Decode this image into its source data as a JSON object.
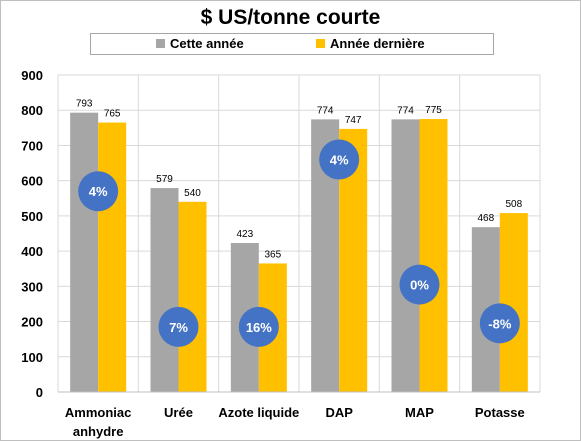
{
  "chart_data": {
    "type": "bar",
    "title": "$ US/tonne courte",
    "categories": [
      [
        "Ammoniac",
        "anhydre"
      ],
      [
        "Urée"
      ],
      [
        "Azote liquide"
      ],
      [
        "DAP"
      ],
      [
        "MAP"
      ],
      [
        "Potasse"
      ]
    ],
    "series": [
      {
        "name": "Cette année",
        "values": [
          793,
          579,
          423,
          774,
          774,
          468
        ],
        "color": "#a6a6a6"
      },
      {
        "name": "Année dernière",
        "values": [
          765,
          540,
          365,
          747,
          775,
          508
        ],
        "color": "#ffc000"
      }
    ],
    "change_labels": [
      "4%",
      "7%",
      "16%",
      "4%",
      "0%",
      "-8%"
    ],
    "change_levels": [
      570,
      185,
      185,
      660,
      305,
      195
    ],
    "ylim": [
      0,
      900
    ],
    "yticks": [
      0,
      100,
      200,
      300,
      400,
      500,
      600,
      700,
      800,
      900
    ],
    "grid": true,
    "legend_position": "top",
    "badge_color": "#4472c4"
  }
}
